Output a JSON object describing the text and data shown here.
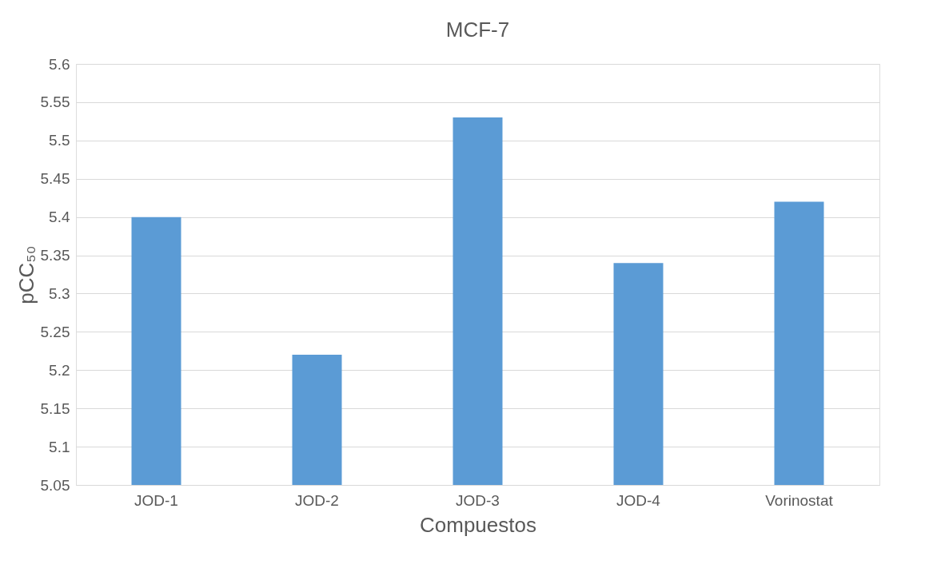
{
  "chart_data": {
    "type": "bar",
    "title": "MCF-7",
    "xlabel": "Compuestos",
    "ylabel": "pCC₅₀",
    "categories": [
      "JOD-1",
      "JOD-2",
      "JOD-3",
      "JOD-4",
      "Vorinostat"
    ],
    "values": [
      5.4,
      5.22,
      5.53,
      5.34,
      5.42
    ],
    "color": "#5b9bd5",
    "ylim": [
      5.05,
      5.6
    ],
    "yticks": [
      5.05,
      5.1,
      5.15,
      5.2,
      5.25,
      5.3,
      5.35,
      5.4,
      5.45,
      5.5,
      5.55,
      5.6
    ],
    "grid": "y"
  }
}
